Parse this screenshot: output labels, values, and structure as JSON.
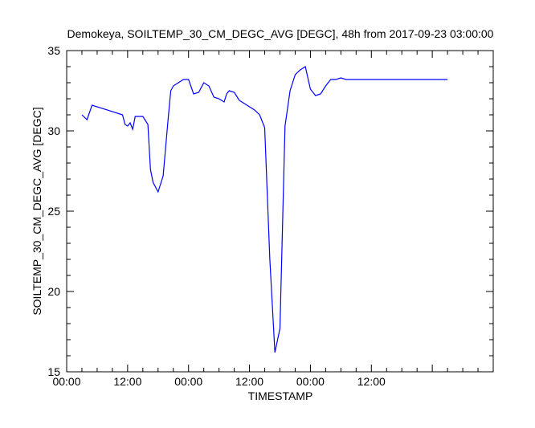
{
  "chart_data": {
    "type": "line",
    "title": "Demokeya, SOILTEMP_30_CM_DEGC_AVG [DEGC], 48h from  2017-09-23 03:00:00",
    "xlabel": "TIMESTAMP",
    "ylabel": "SOILTEMP_30_CM_DEGC_AVG [DEGC]",
    "xlim": [
      "2017-09-22 00:00",
      "2017-09-25 12:00"
    ],
    "ylim": [
      15,
      35
    ],
    "x_ticks": [
      "00:00",
      "12:00",
      "00:00",
      "12:00",
      "00:00",
      "12:00"
    ],
    "y_ticks": [
      "15",
      "20",
      "25",
      "30",
      "35"
    ],
    "grid": false,
    "line_color": "#0000ff",
    "series": [
      {
        "x": [
          "2017-09-22 03:00",
          "2017-09-22 04:00",
          "2017-09-22 05:00",
          "2017-09-22 11:00",
          "2017-09-22 11:30",
          "2017-09-22 12:00",
          "2017-09-22 12:30",
          "2017-09-22 13:00",
          "2017-09-22 13:30",
          "2017-09-22 14:00",
          "2017-09-22 15:00",
          "2017-09-22 16:00",
          "2017-09-22 16:30",
          "2017-09-22 17:00",
          "2017-09-22 18:00",
          "2017-09-22 19:00",
          "2017-09-22 20:00",
          "2017-09-22 20:30",
          "2017-09-22 21:00",
          "2017-09-22 22:00",
          "2017-09-22 23:00",
          "2017-09-23 00:00",
          "2017-09-23 01:00",
          "2017-09-23 02:00",
          "2017-09-23 03:00",
          "2017-09-23 04:00",
          "2017-09-23 05:00",
          "2017-09-23 06:00",
          "2017-09-23 07:00",
          "2017-09-23 07:30",
          "2017-09-23 08:00",
          "2017-09-23 09:00",
          "2017-09-23 10:00",
          "2017-09-23 11:00",
          "2017-09-23 12:00",
          "2017-09-23 13:00",
          "2017-09-23 14:00",
          "2017-09-23 15:00",
          "2017-09-23 16:00",
          "2017-09-23 17:00",
          "2017-09-23 18:00",
          "2017-09-23 19:00",
          "2017-09-23 20:00",
          "2017-09-23 21:00",
          "2017-09-23 22:00",
          "2017-09-23 23:00",
          "2017-09-24 00:00",
          "2017-09-24 01:00",
          "2017-09-24 02:00",
          "2017-09-24 03:00",
          "2017-09-24 04:00",
          "2017-09-24 05:00",
          "2017-09-24 06:00",
          "2017-09-24 07:00",
          "2017-09-24 08:00",
          "2017-09-24 09:00",
          "2017-09-24 10:00",
          "2017-09-24 11:00",
          "2017-09-24 12:00",
          "2017-09-24 13:00",
          "2017-09-24 14:00",
          "2017-09-24 14:30",
          "2017-09-24 15:00",
          "2017-09-24 16:00",
          "2017-09-24 17:00",
          "2017-09-24 18:00",
          "2017-09-24 19:00",
          "2017-09-24 20:00",
          "2017-09-24 21:00",
          "2017-09-24 22:00",
          "2017-09-24 23:00",
          "2017-09-25 00:00",
          "2017-09-25 01:00",
          "2017-09-25 02:00",
          "2017-09-25 03:00"
        ],
        "y": [
          31.0,
          30.7,
          31.6,
          31.0,
          30.4,
          30.3,
          30.5,
          30.1,
          30.9,
          30.9,
          30.9,
          30.4,
          27.6,
          26.8,
          26.2,
          27.2,
          30.8,
          32.5,
          32.8,
          33.0,
          33.2,
          33.2,
          32.3,
          32.4,
          33.0,
          32.8,
          32.1,
          32.0,
          31.8,
          32.3,
          32.5,
          32.4,
          31.9,
          31.7,
          31.5,
          31.3,
          31.0,
          30.2,
          22.0,
          16.2,
          17.7,
          30.3,
          32.5,
          33.5,
          33.8,
          34.0,
          32.6,
          32.2,
          32.3,
          32.8,
          33.2,
          33.2,
          33.3,
          33.2,
          33.2,
          33.2,
          33.2,
          33.2,
          33.2,
          33.2,
          33.2,
          33.2,
          33.2,
          33.2,
          33.2,
          33.2,
          33.2,
          33.2,
          33.2,
          33.2,
          33.2,
          33.2,
          33.2,
          33.2,
          33.2
        ]
      }
    ]
  }
}
